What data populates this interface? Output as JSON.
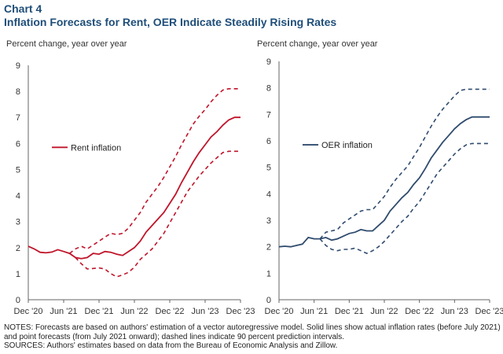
{
  "header": {
    "chart_label": "Chart 4",
    "title": "Inflation Forecasts for Rent, OER Indicate Steadily Rising Rates"
  },
  "chart_data": [
    {
      "type": "line",
      "ylabel": "Percent change, year over year",
      "ylim": [
        0,
        9
      ],
      "yticks": [
        "0",
        "1",
        "2",
        "3",
        "4",
        "5",
        "6",
        "7",
        "8",
        "9"
      ],
      "xticks": [
        "Dec '20",
        "Jun '21",
        "Dec '21",
        "Jun '22",
        "Dec '22",
        "Jun '23",
        "Dec '23"
      ],
      "xlim": [
        0,
        36
      ],
      "color": "#c0142a",
      "legend": "Rent inflation",
      "legend_position": "left-middle",
      "actual_x": [
        0,
        1,
        2,
        3,
        4,
        5,
        6,
        7
      ],
      "actual_y": [
        2.05,
        1.95,
        1.82,
        1.8,
        1.83,
        1.92,
        1.85,
        1.78
      ],
      "forecast_x": [
        7,
        8,
        9,
        10,
        11,
        12,
        13,
        14,
        15,
        16,
        17,
        18,
        19,
        20,
        21,
        22,
        23,
        24,
        25,
        26,
        27,
        28,
        29,
        30,
        31,
        32,
        33,
        34,
        35,
        36
      ],
      "forecast_y": [
        1.78,
        1.62,
        1.58,
        1.62,
        1.78,
        1.75,
        1.85,
        1.82,
        1.75,
        1.7,
        1.85,
        2.0,
        2.25,
        2.6,
        2.85,
        3.1,
        3.35,
        3.7,
        4.05,
        4.5,
        4.9,
        5.3,
        5.65,
        5.95,
        6.25,
        6.45,
        6.7,
        6.9,
        7.0,
        7.0
      ],
      "upper_y": [
        1.78,
        1.95,
        2.05,
        1.95,
        2.1,
        2.25,
        2.4,
        2.55,
        2.5,
        2.55,
        2.75,
        3.05,
        3.35,
        3.75,
        4.05,
        4.35,
        4.7,
        5.1,
        5.5,
        5.95,
        6.35,
        6.75,
        7.05,
        7.3,
        7.6,
        7.85,
        8.05,
        8.1,
        8.1,
        8.1
      ],
      "lower_y": [
        1.78,
        1.62,
        1.38,
        1.18,
        1.2,
        1.22,
        1.18,
        1.0,
        0.88,
        0.95,
        1.05,
        1.25,
        1.55,
        1.75,
        1.95,
        2.25,
        2.55,
        2.95,
        3.35,
        3.75,
        4.15,
        4.45,
        4.75,
        5.0,
        5.25,
        5.45,
        5.65,
        5.7,
        5.7,
        5.7
      ]
    },
    {
      "type": "line",
      "ylabel": "Percent change, year over year",
      "ylim": [
        0,
        9
      ],
      "yticks": [
        "0",
        "1",
        "2",
        "3",
        "4",
        "5",
        "6",
        "7",
        "8",
        "9"
      ],
      "xticks": [
        "Dec '20",
        "Jun '21",
        "Dec '21",
        "Jun '22",
        "Dec '22",
        "Jun '23",
        "Dec '23"
      ],
      "xlim": [
        0,
        36
      ],
      "color": "#2f4b6e",
      "legend": "OER inflation",
      "legend_position": "left-middle",
      "actual_x": [
        0,
        1,
        2,
        3,
        4,
        5,
        6,
        7
      ],
      "actual_y": [
        2.0,
        2.02,
        2.0,
        2.05,
        2.1,
        2.35,
        2.3,
        2.3
      ],
      "forecast_x": [
        7,
        8,
        9,
        10,
        11,
        12,
        13,
        14,
        15,
        16,
        17,
        18,
        19,
        20,
        21,
        22,
        23,
        24,
        25,
        26,
        27,
        28,
        29,
        30,
        31,
        32,
        33,
        34,
        35,
        36
      ],
      "forecast_y": [
        2.3,
        2.35,
        2.25,
        2.3,
        2.4,
        2.5,
        2.55,
        2.65,
        2.6,
        2.6,
        2.8,
        3.0,
        3.35,
        3.6,
        3.85,
        4.05,
        4.35,
        4.6,
        4.95,
        5.35,
        5.65,
        5.95,
        6.2,
        6.45,
        6.65,
        6.8,
        6.9,
        6.9,
        6.9,
        6.9
      ],
      "upper_y": [
        2.3,
        2.55,
        2.6,
        2.65,
        2.9,
        3.05,
        3.2,
        3.35,
        3.4,
        3.4,
        3.65,
        3.9,
        4.25,
        4.55,
        4.8,
        5.05,
        5.4,
        5.75,
        6.15,
        6.55,
        6.9,
        7.2,
        7.45,
        7.7,
        7.9,
        7.95,
        7.95,
        7.95,
        7.95,
        7.95
      ],
      "lower_y": [
        2.3,
        2.05,
        1.9,
        1.85,
        1.9,
        1.9,
        1.95,
        1.85,
        1.75,
        1.85,
        2.0,
        2.2,
        2.45,
        2.7,
        2.95,
        3.15,
        3.45,
        3.7,
        4.05,
        4.4,
        4.75,
        5.0,
        5.25,
        5.5,
        5.7,
        5.85,
        5.9,
        5.9,
        5.9,
        5.9
      ]
    }
  ],
  "footer": {
    "notes": "NOTES: Forecasts are based on authors' estimation of a vector autoregressive model. Solid lines show actual inflation rates (before July 2021) and point forecasts (from July 2021 onward); dashed lines indicate 90 percent prediction intervals.",
    "sources": "SOURCES: Authors' estimates based on data from the Bureau of Economic Analysis and Zillow."
  }
}
